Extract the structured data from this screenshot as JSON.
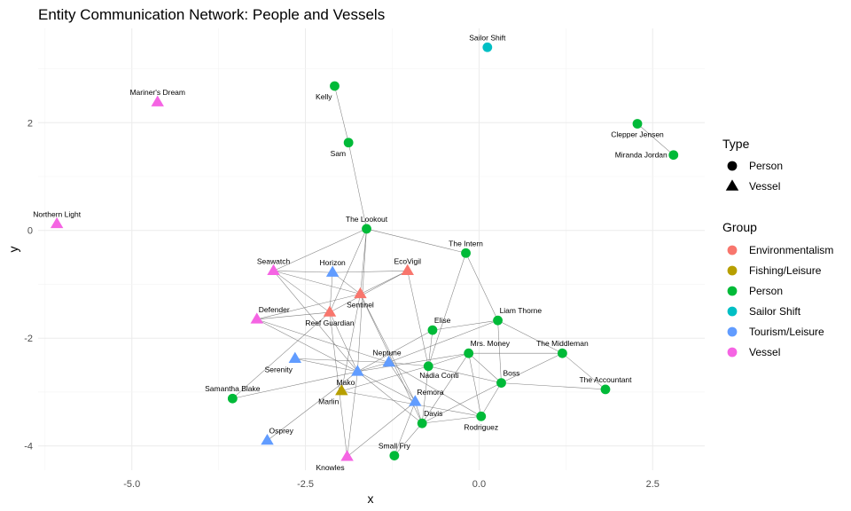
{
  "chart_data": {
    "type": "scatter",
    "title": "Entity Communication Network: People and Vessels",
    "xlabel": "x",
    "ylabel": "y",
    "xlim": [
      -6.35,
      3.25
    ],
    "ylim": [
      -4.45,
      3.75
    ],
    "xticks": [
      -5.0,
      -2.5,
      0.0,
      2.5
    ],
    "xtick_labels": [
      "-5.0",
      "-2.5",
      "0.0",
      "2.5"
    ],
    "yticks": [
      2,
      0,
      -2,
      -4
    ],
    "ytick_labels": [
      "2",
      "0",
      "-2",
      "-4"
    ],
    "grid": true,
    "legend_position": "right",
    "legends": {
      "type": {
        "title": "Type",
        "entries": [
          {
            "label": "Person",
            "shape": "circle"
          },
          {
            "label": "Vessel",
            "shape": "triangle"
          }
        ]
      },
      "group": {
        "title": "Group",
        "entries": [
          {
            "label": "Environmentalism",
            "color": "#F8766D"
          },
          {
            "label": "Fishing/Leisure",
            "color": "#B79F00"
          },
          {
            "label": "Person",
            "color": "#00BA38"
          },
          {
            "label": "Sailor Shift",
            "color": "#00BFC4"
          },
          {
            "label": "Tourism/Leisure",
            "color": "#619CFF"
          },
          {
            "label": "Vessel",
            "color": "#F564E3"
          }
        ]
      }
    },
    "nodes": [
      {
        "id": "Sailor Shift",
        "x": 0.12,
        "y": 3.4,
        "type": "Person",
        "group": "Sailor Shift",
        "label_pos": "above"
      },
      {
        "id": "Kelly",
        "x": -2.08,
        "y": 2.68,
        "type": "Person",
        "group": "Person",
        "label_pos": "below-left"
      },
      {
        "id": "Mariner's Dream",
        "x": -4.63,
        "y": 2.38,
        "type": "Vessel",
        "group": "Vessel",
        "label_pos": "above"
      },
      {
        "id": "Clepper Jensen",
        "x": 2.28,
        "y": 1.98,
        "type": "Person",
        "group": "Person",
        "label_pos": "below"
      },
      {
        "id": "Miranda Jordan",
        "x": 2.8,
        "y": 1.4,
        "type": "Person",
        "group": "Person",
        "label_pos": "left"
      },
      {
        "id": "Sam",
        "x": -1.88,
        "y": 1.63,
        "type": "Person",
        "group": "Person",
        "label_pos": "below-left"
      },
      {
        "id": "Northern Light",
        "x": -6.08,
        "y": 0.12,
        "type": "Vessel",
        "group": "Vessel",
        "label_pos": "above"
      },
      {
        "id": "The Lookout",
        "x": -1.62,
        "y": 0.03,
        "type": "Person",
        "group": "Person",
        "label_pos": "above"
      },
      {
        "id": "The Intern",
        "x": -0.19,
        "y": -0.42,
        "type": "Person",
        "group": "Person",
        "label_pos": "above"
      },
      {
        "id": "Seawatch",
        "x": -2.96,
        "y": -0.75,
        "type": "Vessel",
        "group": "Vessel",
        "label_pos": "above"
      },
      {
        "id": "Horizon",
        "x": -2.11,
        "y": -0.78,
        "type": "Vessel",
        "group": "Tourism/Leisure",
        "label_pos": "above"
      },
      {
        "id": "EcoVigil",
        "x": -1.03,
        "y": -0.75,
        "type": "Vessel",
        "group": "Environmentalism",
        "label_pos": "above"
      },
      {
        "id": "Sentinel",
        "x": -1.71,
        "y": -1.18,
        "type": "Vessel",
        "group": "Environmentalism",
        "label_pos": "below"
      },
      {
        "id": "Reef Guardian",
        "x": -2.15,
        "y": -1.52,
        "type": "Vessel",
        "group": "Environmentalism",
        "label_pos": "below"
      },
      {
        "id": "Defender",
        "x": -3.2,
        "y": -1.65,
        "type": "Vessel",
        "group": "Vessel",
        "label_pos": "above-right"
      },
      {
        "id": "Liam Thorne",
        "x": 0.27,
        "y": -1.67,
        "type": "Person",
        "group": "Person",
        "label_pos": "above-right"
      },
      {
        "id": "Elise",
        "x": -0.67,
        "y": -1.85,
        "type": "Person",
        "group": "Person",
        "label_pos": "above-right"
      },
      {
        "id": "Mrs. Money",
        "x": -0.15,
        "y": -2.28,
        "type": "Person",
        "group": "Person",
        "label_pos": "above-right"
      },
      {
        "id": "The Middleman",
        "x": 1.2,
        "y": -2.28,
        "type": "Person",
        "group": "Person",
        "label_pos": "above"
      },
      {
        "id": "Serenity",
        "x": -2.65,
        "y": -2.38,
        "type": "Vessel",
        "group": "Tourism/Leisure",
        "label_pos": "below-left"
      },
      {
        "id": "Neptune",
        "x": -1.3,
        "y": -2.45,
        "type": "Vessel",
        "group": "Tourism/Leisure",
        "label_pos": "above-left"
      },
      {
        "id": "Nadia Conti",
        "x": -0.73,
        "y": -2.52,
        "type": "Person",
        "group": "Person",
        "label_pos": "below-right"
      },
      {
        "id": "Mako",
        "x": -1.75,
        "y": -2.62,
        "type": "Vessel",
        "group": "Tourism/Leisure",
        "label_pos": "below-left"
      },
      {
        "id": "Boss",
        "x": 0.32,
        "y": -2.83,
        "type": "Person",
        "group": "Person",
        "label_pos": "above-right"
      },
      {
        "id": "The Accountant",
        "x": 1.82,
        "y": -2.95,
        "type": "Person",
        "group": "Person",
        "label_pos": "above"
      },
      {
        "id": "Marlin",
        "x": -1.98,
        "y": -2.98,
        "type": "Vessel",
        "group": "Fishing/Leisure",
        "label_pos": "below-left"
      },
      {
        "id": "Samantha Blake",
        "x": -3.55,
        "y": -3.12,
        "type": "Person",
        "group": "Person",
        "label_pos": "above"
      },
      {
        "id": "Remora",
        "x": -0.92,
        "y": -3.18,
        "type": "Vessel",
        "group": "Tourism/Leisure",
        "label_pos": "above-right"
      },
      {
        "id": "Rodriguez",
        "x": 0.03,
        "y": -3.45,
        "type": "Person",
        "group": "Person",
        "label_pos": "below"
      },
      {
        "id": "Davis",
        "x": -0.82,
        "y": -3.58,
        "type": "Person",
        "group": "Person",
        "label_pos": "above-right"
      },
      {
        "id": "Osprey",
        "x": -3.05,
        "y": -3.9,
        "type": "Vessel",
        "group": "Tourism/Leisure",
        "label_pos": "above-right"
      },
      {
        "id": "Small Fry",
        "x": -1.22,
        "y": -4.18,
        "type": "Person",
        "group": "Person",
        "label_pos": "above"
      },
      {
        "id": "Knowles",
        "x": -1.9,
        "y": -4.2,
        "type": "Vessel",
        "group": "Vessel",
        "label_pos": "below-left"
      }
    ],
    "edges": [
      [
        "Kelly",
        "Sam"
      ],
      [
        "Sam",
        "The Lookout"
      ],
      [
        "Clepper Jensen",
        "Miranda Jordan"
      ],
      [
        "The Lookout",
        "Seawatch"
      ],
      [
        "The Lookout",
        "Sentinel"
      ],
      [
        "The Lookout",
        "Reef Guardian"
      ],
      [
        "The Lookout",
        "The Intern"
      ],
      [
        "The Lookout",
        "Mako"
      ],
      [
        "The Intern",
        "Liam Thorne"
      ],
      [
        "The Intern",
        "Nadia Conti"
      ],
      [
        "Seawatch",
        "Sentinel"
      ],
      [
        "Seawatch",
        "Reef Guardian"
      ],
      [
        "Seawatch",
        "Horizon"
      ],
      [
        "Seawatch",
        "Mako"
      ],
      [
        "Horizon",
        "EcoVigil"
      ],
      [
        "Horizon",
        "Sentinel"
      ],
      [
        "Horizon",
        "Reef Guardian"
      ],
      [
        "EcoVigil",
        "Sentinel"
      ],
      [
        "EcoVigil",
        "Reef Guardian"
      ],
      [
        "EcoVigil",
        "Nadia Conti"
      ],
      [
        "Sentinel",
        "Defender"
      ],
      [
        "Sentinel",
        "Remora"
      ],
      [
        "Sentinel",
        "Davis"
      ],
      [
        "Sentinel",
        "Marlin"
      ],
      [
        "Reef Guardian",
        "Defender"
      ],
      [
        "Reef Guardian",
        "Mako"
      ],
      [
        "Reef Guardian",
        "Knowles"
      ],
      [
        "Reef Guardian",
        "Samantha Blake"
      ],
      [
        "Defender",
        "Mako"
      ],
      [
        "Defender",
        "Neptune"
      ],
      [
        "Liam Thorne",
        "Elise"
      ],
      [
        "Liam Thorne",
        "Boss"
      ],
      [
        "Liam Thorne",
        "The Middleman"
      ],
      [
        "Liam Thorne",
        "Neptune"
      ],
      [
        "Elise",
        "Nadia Conti"
      ],
      [
        "Elise",
        "Mako"
      ],
      [
        "Mrs. Money",
        "The Middleman"
      ],
      [
        "Mrs. Money",
        "Boss"
      ],
      [
        "Mrs. Money",
        "Rodriguez"
      ],
      [
        "Mrs. Money",
        "Davis"
      ],
      [
        "Mrs. Money",
        "Mako"
      ],
      [
        "Mrs. Money",
        "Nadia Conti"
      ],
      [
        "The Middleman",
        "The Accountant"
      ],
      [
        "The Middleman",
        "Boss"
      ],
      [
        "Boss",
        "The Accountant"
      ],
      [
        "Boss",
        "Nadia Conti"
      ],
      [
        "Boss",
        "Rodriguez"
      ],
      [
        "Boss",
        "Davis"
      ],
      [
        "Serenity",
        "Neptune"
      ],
      [
        "Serenity",
        "Mako"
      ],
      [
        "Neptune",
        "Nadia Conti"
      ],
      [
        "Neptune",
        "Mako"
      ],
      [
        "Neptune",
        "Remora"
      ],
      [
        "Neptune",
        "Rodriguez"
      ],
      [
        "Nadia Conti",
        "Marlin"
      ],
      [
        "Nadia Conti",
        "Davis"
      ],
      [
        "Mako",
        "Remora"
      ],
      [
        "Mako",
        "Samantha Blake"
      ],
      [
        "Mako",
        "Osprey"
      ],
      [
        "Mako",
        "Knowles"
      ],
      [
        "Mako",
        "Davis"
      ],
      [
        "Marlin",
        "Rodriguez"
      ],
      [
        "Remora",
        "Davis"
      ],
      [
        "Remora",
        "Small Fry"
      ],
      [
        "Remora",
        "Knowles"
      ],
      [
        "Davis",
        "Small Fry"
      ],
      [
        "Davis",
        "Rodriguez"
      ]
    ]
  }
}
